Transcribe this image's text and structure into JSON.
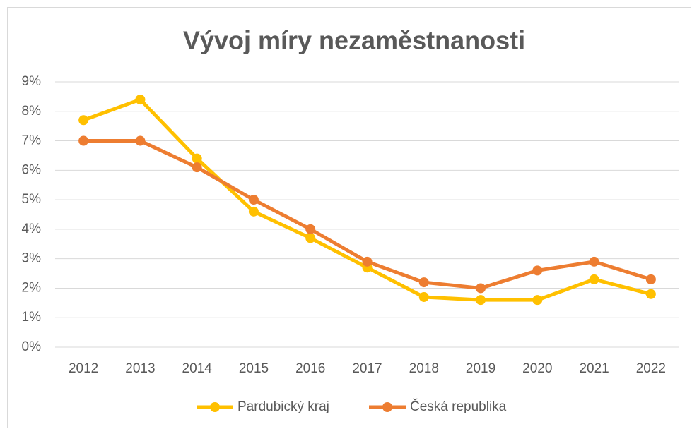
{
  "chart_data": {
    "type": "line",
    "title": "Vývoj míry nezaměstnanosti",
    "categories": [
      "2012",
      "2013",
      "2014",
      "2015",
      "2016",
      "2017",
      "2018",
      "2019",
      "2020",
      "2021",
      "2022"
    ],
    "series": [
      {
        "name": "Pardubický kraj",
        "color": "#FFC000",
        "values": [
          7.7,
          8.4,
          6.4,
          4.6,
          3.7,
          2.7,
          1.7,
          1.6,
          1.6,
          2.3,
          1.8
        ]
      },
      {
        "name": "Česká republika",
        "color": "#ED7D31",
        "values": [
          7.0,
          7.0,
          6.1,
          5.0,
          4.0,
          2.9,
          2.2,
          2.0,
          2.6,
          2.9,
          2.3
        ]
      }
    ],
    "ylim": [
      0,
      9
    ],
    "yticks": [
      {
        "value": 0,
        "label": "0%"
      },
      {
        "value": 1,
        "label": "1%"
      },
      {
        "value": 2,
        "label": "2%"
      },
      {
        "value": 3,
        "label": "3%"
      },
      {
        "value": 4,
        "label": "4%"
      },
      {
        "value": 5,
        "label": "5%"
      },
      {
        "value": 6,
        "label": "6%"
      },
      {
        "value": 7,
        "label": "7%"
      },
      {
        "value": 8,
        "label": "8%"
      },
      {
        "value": 9,
        "label": "9%"
      }
    ],
    "grid": true,
    "legend": "bottom"
  }
}
